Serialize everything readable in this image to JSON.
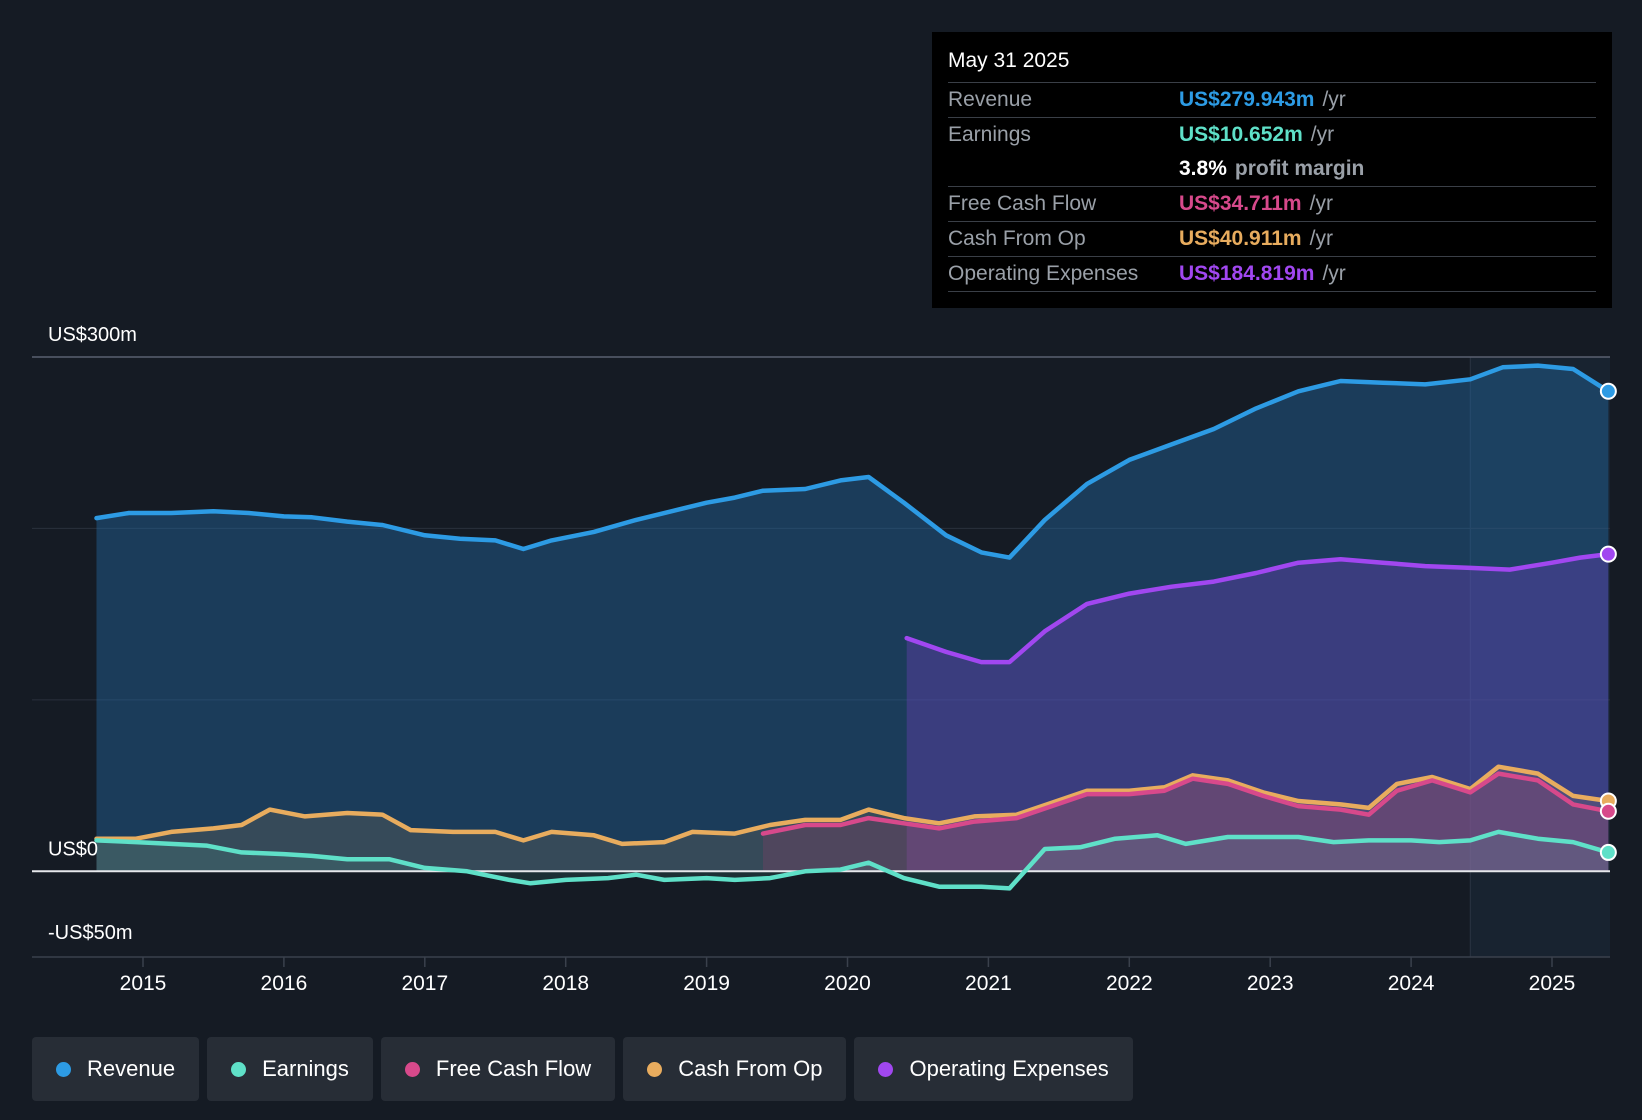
{
  "chart_data": {
    "type": "area",
    "title": "",
    "y_axis": {
      "min": -50,
      "max": 300,
      "labels": [
        {
          "value": 300,
          "text": "US$300m"
        },
        {
          "value": 0,
          "text": "US$0"
        },
        {
          "value": -50,
          "text": "-US$50m"
        }
      ],
      "gridlines": [
        300,
        200,
        100,
        0
      ]
    },
    "x_axis": {
      "min": 2014.2,
      "max": 2025.4,
      "ticks": [
        2015,
        2016,
        2017,
        2018,
        2019,
        2020,
        2021,
        2022,
        2023,
        2024,
        2025
      ]
    },
    "highlight_start": 2024.42,
    "series": [
      {
        "name": "Revenue",
        "color": "#2d9be4",
        "points": [
          [
            2014.67,
            206
          ],
          [
            2014.9,
            209
          ],
          [
            2015.2,
            209
          ],
          [
            2015.5,
            210
          ],
          [
            2015.75,
            209
          ],
          [
            2016,
            207
          ],
          [
            2016.2,
            206.5
          ],
          [
            2016.45,
            204
          ],
          [
            2016.7,
            202
          ],
          [
            2017,
            196
          ],
          [
            2017.25,
            194
          ],
          [
            2017.5,
            193
          ],
          [
            2017.7,
            188
          ],
          [
            2017.9,
            193
          ],
          [
            2018.2,
            198
          ],
          [
            2018.5,
            205
          ],
          [
            2018.8,
            211
          ],
          [
            2019,
            215
          ],
          [
            2019.2,
            218
          ],
          [
            2019.4,
            222
          ],
          [
            2019.7,
            223
          ],
          [
            2019.95,
            228
          ],
          [
            2020.15,
            230
          ],
          [
            2020.4,
            215
          ],
          [
            2020.7,
            196
          ],
          [
            2020.95,
            186
          ],
          [
            2021.15,
            183
          ],
          [
            2021.4,
            205
          ],
          [
            2021.7,
            226
          ],
          [
            2022,
            240
          ],
          [
            2022.3,
            249
          ],
          [
            2022.6,
            258
          ],
          [
            2022.9,
            270
          ],
          [
            2023.2,
            280
          ],
          [
            2023.5,
            286
          ],
          [
            2023.8,
            285
          ],
          [
            2024.1,
            284
          ],
          [
            2024.42,
            287
          ],
          [
            2024.65,
            294
          ],
          [
            2024.9,
            295
          ],
          [
            2025.15,
            293
          ],
          [
            2025.4,
            280
          ]
        ]
      },
      {
        "name": "Operating Expenses",
        "color": "#a147f0",
        "points": [
          [
            2020.42,
            136
          ],
          [
            2020.7,
            128
          ],
          [
            2020.95,
            122
          ],
          [
            2021.15,
            122
          ],
          [
            2021.4,
            140
          ],
          [
            2021.7,
            156
          ],
          [
            2022,
            162
          ],
          [
            2022.3,
            166
          ],
          [
            2022.6,
            169
          ],
          [
            2022.9,
            174
          ],
          [
            2023.2,
            180
          ],
          [
            2023.5,
            182
          ],
          [
            2023.8,
            180
          ],
          [
            2024.1,
            178
          ],
          [
            2024.42,
            177
          ],
          [
            2024.7,
            176
          ],
          [
            2025,
            180
          ],
          [
            2025.2,
            183
          ],
          [
            2025.4,
            185
          ]
        ]
      },
      {
        "name": "Cash From Op",
        "color": "#e8ac5e",
        "points": [
          [
            2014.67,
            19
          ],
          [
            2014.95,
            19
          ],
          [
            2015.2,
            23
          ],
          [
            2015.5,
            25
          ],
          [
            2015.7,
            27
          ],
          [
            2015.9,
            36
          ],
          [
            2016.15,
            32
          ],
          [
            2016.45,
            34
          ],
          [
            2016.7,
            33
          ],
          [
            2016.9,
            24
          ],
          [
            2017.2,
            23
          ],
          [
            2017.5,
            23
          ],
          [
            2017.7,
            18
          ],
          [
            2017.9,
            23
          ],
          [
            2018.2,
            21
          ],
          [
            2018.4,
            16
          ],
          [
            2018.7,
            17
          ],
          [
            2018.9,
            23
          ],
          [
            2019.2,
            22
          ],
          [
            2019.45,
            27
          ],
          [
            2019.7,
            30
          ],
          [
            2019.95,
            30
          ],
          [
            2020.15,
            36
          ],
          [
            2020.4,
            31
          ],
          [
            2020.65,
            28
          ],
          [
            2020.9,
            32
          ],
          [
            2021.2,
            33
          ],
          [
            2021.45,
            40
          ],
          [
            2021.7,
            47
          ],
          [
            2022,
            47
          ],
          [
            2022.25,
            49
          ],
          [
            2022.45,
            56
          ],
          [
            2022.7,
            53
          ],
          [
            2022.95,
            46
          ],
          [
            2023.2,
            41
          ],
          [
            2023.5,
            39
          ],
          [
            2023.7,
            37
          ],
          [
            2023.9,
            51
          ],
          [
            2024.15,
            55
          ],
          [
            2024.42,
            48
          ],
          [
            2024.62,
            61
          ],
          [
            2024.9,
            57
          ],
          [
            2025.15,
            44
          ],
          [
            2025.4,
            41
          ]
        ]
      },
      {
        "name": "Free Cash Flow",
        "color": "#d7498b",
        "points": [
          [
            2019.4,
            22
          ],
          [
            2019.7,
            27
          ],
          [
            2019.95,
            27
          ],
          [
            2020.15,
            31
          ],
          [
            2020.4,
            28
          ],
          [
            2020.65,
            25
          ],
          [
            2020.9,
            29
          ],
          [
            2021.2,
            31
          ],
          [
            2021.45,
            38
          ],
          [
            2021.7,
            45
          ],
          [
            2022,
            45
          ],
          [
            2022.25,
            47
          ],
          [
            2022.45,
            54
          ],
          [
            2022.7,
            51
          ],
          [
            2022.95,
            44
          ],
          [
            2023.2,
            38
          ],
          [
            2023.5,
            36
          ],
          [
            2023.7,
            33
          ],
          [
            2023.9,
            47
          ],
          [
            2024.15,
            53
          ],
          [
            2024.42,
            46
          ],
          [
            2024.62,
            57
          ],
          [
            2024.9,
            53
          ],
          [
            2025.15,
            39
          ],
          [
            2025.4,
            35
          ]
        ]
      },
      {
        "name": "Earnings",
        "color": "#5fe0c8",
        "points": [
          [
            2014.67,
            18
          ],
          [
            2014.95,
            17
          ],
          [
            2015.2,
            16
          ],
          [
            2015.45,
            15
          ],
          [
            2015.7,
            11
          ],
          [
            2016,
            10
          ],
          [
            2016.2,
            9
          ],
          [
            2016.45,
            7
          ],
          [
            2016.75,
            7
          ],
          [
            2017,
            2
          ],
          [
            2017.3,
            0
          ],
          [
            2017.6,
            -5
          ],
          [
            2017.75,
            -7
          ],
          [
            2018,
            -5
          ],
          [
            2018.3,
            -4
          ],
          [
            2018.5,
            -2
          ],
          [
            2018.7,
            -5
          ],
          [
            2019,
            -4
          ],
          [
            2019.2,
            -5
          ],
          [
            2019.45,
            -4
          ],
          [
            2019.7,
            0
          ],
          [
            2019.95,
            1
          ],
          [
            2020.15,
            5
          ],
          [
            2020.4,
            -4
          ],
          [
            2020.65,
            -9
          ],
          [
            2020.95,
            -9
          ],
          [
            2021.15,
            -10
          ],
          [
            2021.4,
            13
          ],
          [
            2021.65,
            14
          ],
          [
            2021.9,
            19
          ],
          [
            2022.2,
            21
          ],
          [
            2022.4,
            16
          ],
          [
            2022.7,
            20
          ],
          [
            2022.95,
            20
          ],
          [
            2023.2,
            20
          ],
          [
            2023.45,
            17
          ],
          [
            2023.7,
            18
          ],
          [
            2024,
            18
          ],
          [
            2024.2,
            17
          ],
          [
            2024.42,
            18
          ],
          [
            2024.62,
            23
          ],
          [
            2024.9,
            19
          ],
          [
            2025.15,
            17
          ],
          [
            2025.4,
            11
          ]
        ]
      }
    ],
    "tooltip": {
      "date": "May 31 2025",
      "rows": [
        {
          "label": "Revenue",
          "value": "US$279.943m",
          "unit": "/yr",
          "color": "#2d9be4"
        },
        {
          "label": "Earnings",
          "value": "US$10.652m",
          "unit": "/yr",
          "color": "#5fe0c8"
        },
        {
          "label": "",
          "value": "3.8%",
          "unit": "profit margin",
          "color": "#ffffff"
        },
        {
          "label": "Free Cash Flow",
          "value": "US$34.711m",
          "unit": "/yr",
          "color": "#d7498b"
        },
        {
          "label": "Cash From Op",
          "value": "US$40.911m",
          "unit": "/yr",
          "color": "#e8ac5e"
        },
        {
          "label": "Operating Expenses",
          "value": "US$184.819m",
          "unit": "/yr",
          "color": "#a147f0"
        }
      ]
    },
    "legend": [
      {
        "name": "Revenue",
        "color": "#2d9be4"
      },
      {
        "name": "Earnings",
        "color": "#5fe0c8"
      },
      {
        "name": "Free Cash Flow",
        "color": "#d7498b"
      },
      {
        "name": "Cash From Op",
        "color": "#e8ac5e"
      },
      {
        "name": "Operating Expenses",
        "color": "#a147f0"
      }
    ]
  }
}
